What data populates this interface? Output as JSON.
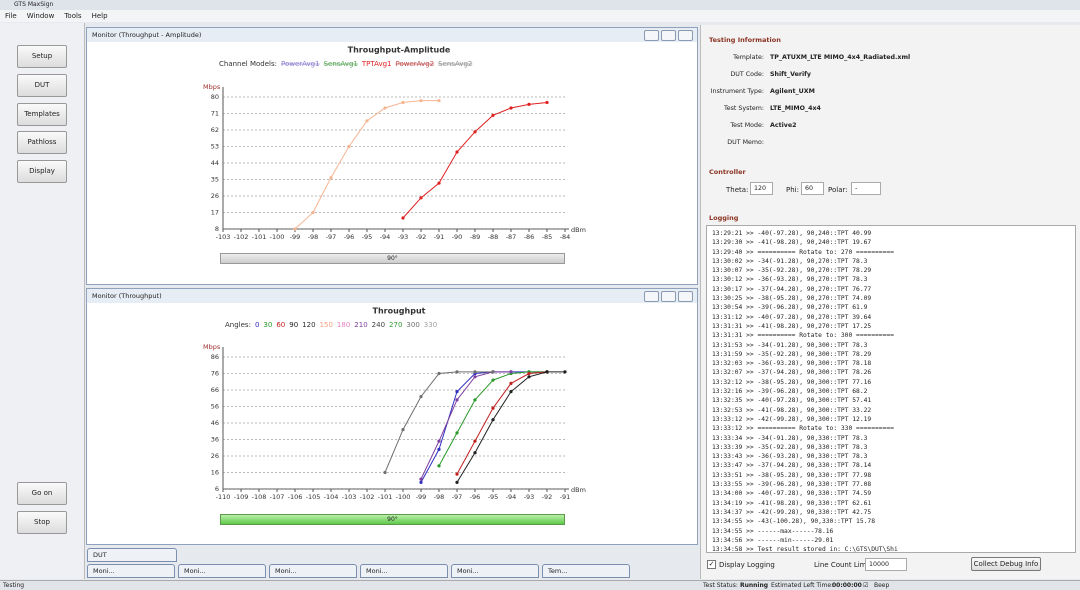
{
  "window_title": "GTS MaxSign",
  "menu": [
    "File",
    "Window",
    "Tools",
    "Help"
  ],
  "left_buttons": [
    "Setup",
    "DUT",
    "Templates",
    "Pathloss",
    "Display"
  ],
  "action_buttons": [
    "Go on",
    "Stop"
  ],
  "panels": [
    {
      "title": "Monitor (Throughput - Amplitude)",
      "slider": "90°"
    },
    {
      "title": "Monitor (Throughput)",
      "slider": "90°"
    }
  ],
  "chart_data": [
    {
      "type": "line",
      "title": "Throughput-Amplitude",
      "legend_title": "Channel Models:",
      "y_label": "Mbps",
      "x_label": "dBm",
      "ylim": [
        8,
        80
      ],
      "yticks": [
        8,
        17,
        26,
        35,
        44,
        53,
        62,
        71,
        80
      ],
      "xlim": [
        -103,
        -84
      ],
      "xticks": [
        -103,
        -102,
        -101,
        -100,
        -99,
        -98,
        -97,
        -96,
        -95,
        -94,
        -93,
        -92,
        -91,
        -90,
        -89,
        -88,
        -87,
        -86,
        -85,
        -84
      ],
      "grid": true,
      "series": [
        {
          "name": "PowerAvg1",
          "color": "#8a7fd0",
          "struck": true
        },
        {
          "name": "SensAvg1",
          "color": "#5aa55a",
          "struck": true
        },
        {
          "name": "TPTAvg1",
          "color": "#e02020",
          "x": [
            -93,
            -92,
            -91,
            -90,
            -89,
            -88,
            -87,
            -86,
            -85
          ],
          "values": [
            14,
            25,
            33,
            50,
            61,
            70,
            74,
            76,
            77
          ]
        },
        {
          "name": "PowerAvg2",
          "color": "#c05050",
          "struck": true
        },
        {
          "name": "SensAvg2",
          "color": "#909090",
          "struck": true
        },
        {
          "color": "#f5b592",
          "x": [
            -99,
            -98,
            -97,
            -96,
            -95,
            -94,
            -93,
            -92,
            -91
          ],
          "values": [
            8,
            17,
            36,
            53,
            67,
            74,
            77,
            78,
            78
          ]
        }
      ]
    },
    {
      "type": "line",
      "title": "Throughput",
      "legend_title": "Angles:",
      "y_label": "Mbps",
      "x_label": "dBm",
      "ylim": [
        6,
        86
      ],
      "yticks": [
        6,
        16,
        26,
        36,
        46,
        56,
        66,
        76,
        86
      ],
      "xlim": [
        -110,
        -91
      ],
      "xticks": [
        -110,
        -109,
        -108,
        -107,
        -106,
        -105,
        -104,
        -103,
        -102,
        -101,
        -100,
        -99,
        -98,
        -97,
        -96,
        -95,
        -94,
        -93,
        -92,
        -91
      ],
      "grid": true,
      "series": [
        {
          "name": "0",
          "color": "#3030c0",
          "x": [
            -99,
            -98,
            -97,
            -96,
            -95,
            -94,
            -93,
            -92
          ],
          "values": [
            10,
            30,
            65,
            76,
            77,
            77,
            77,
            77
          ]
        },
        {
          "name": "30",
          "color": "#2a9a2a",
          "x": [
            -98,
            -97,
            -96,
            -95,
            -94,
            -93,
            -92
          ],
          "values": [
            20,
            40,
            60,
            72,
            76,
            77,
            77
          ]
        },
        {
          "name": "60",
          "color": "#c02020",
          "x": [
            -97,
            -96,
            -95,
            -94,
            -93,
            -92
          ],
          "values": [
            15,
            35,
            55,
            70,
            76,
            77
          ]
        },
        {
          "name": "90",
          "color": "#202020",
          "x": [
            -97,
            -96,
            -95,
            -94,
            -93,
            -92,
            -91
          ],
          "values": [
            10,
            28,
            48,
            65,
            74,
            77,
            77
          ]
        },
        {
          "name": "120",
          "color": "#303030"
        },
        {
          "name": "150",
          "color": "#f0a080"
        },
        {
          "name": "180",
          "color": "#e080c0"
        },
        {
          "name": "210",
          "color": "#8040a0",
          "x": [
            -99,
            -98,
            -97,
            -96,
            -95,
            -94
          ],
          "values": [
            12,
            35,
            60,
            74,
            77,
            77
          ]
        },
        {
          "name": "240",
          "color": "#404040"
        },
        {
          "name": "270",
          "color": "#30a030"
        },
        {
          "name": "300",
          "color": "#707070",
          "x": [
            -101,
            -100,
            -99,
            -98,
            -97,
            -96,
            -95
          ],
          "values": [
            16,
            42,
            62,
            76,
            77,
            77,
            77
          ]
        },
        {
          "name": "330",
          "color": "#a0a0a0"
        }
      ]
    }
  ],
  "bottom_tabs": {
    "dut": "DUT",
    "tabs": [
      "Moni...",
      "Moni...",
      "Moni...",
      "Moni...",
      "Moni...",
      "Tem..."
    ]
  },
  "testing_information": {
    "title": "Testing Information",
    "fields": [
      {
        "label": "Template:",
        "value": "TP_ATUXM_LTE MIMO_4x4_Radiated.xml"
      },
      {
        "label": "DUT Code:",
        "value": "Shift_Verify"
      },
      {
        "label": "Instrument Type:",
        "value": "Agilent_UXM"
      },
      {
        "label": "Test System:",
        "value": "LTE_MIMO_4x4"
      },
      {
        "label": "Test Mode:",
        "value": "Active2"
      },
      {
        "label": "DUT Memo:"
      }
    ]
  },
  "controller": {
    "title": "Controller",
    "fields": [
      {
        "label": "Theta:",
        "value": "120"
      },
      {
        "label": "Phi:",
        "value": "60"
      },
      {
        "label": "Polar:",
        "value": "-"
      }
    ]
  },
  "logging": {
    "title": "Logging",
    "lines": [
      "13:29:21 >> -40(-97.28), 90,240::TPT 40.99",
      "13:29:30 >> -41(-98.28), 90,240::TPT 19.67",
      "13:29:40 >> ========== Rotate to: 270 ==========",
      "13:30:02 >> -34(-91.28), 90,270::TPT 78.3",
      "13:30:07 >> -35(-92.28), 90,270::TPT 78.29",
      "13:30:12 >> -36(-93.28), 90,270::TPT 78.3",
      "13:30:17 >> -37(-94.28), 90,270::TPT 76.77",
      "13:30:25 >> -38(-95.28), 90,270::TPT 74.09",
      "13:30:54 >> -39(-96.28), 90,270::TPT 61.9",
      "13:31:12 >> -40(-97.28), 90,270::TPT 39.64",
      "13:31:31 >> -41(-98.28), 90,270::TPT 17.25",
      "13:31:31 >> ========== Rotate to: 300 ==========",
      "13:31:53 >> -34(-91.28), 90,300::TPT 78.3",
      "13:31:59 >> -35(-92.28), 90,300::TPT 78.29",
      "13:32:03 >> -36(-93.28), 90,300::TPT 78.18",
      "13:32:07 >> -37(-94.28), 90,300::TPT 78.26",
      "13:32:12 >> -38(-95.28), 90,300::TPT 77.16",
      "13:32:16 >> -39(-96.28), 90,300::TPT 68.2",
      "13:32:35 >> -40(-97.28), 90,300::TPT 57.41",
      "13:32:53 >> -41(-98.28), 90,300::TPT 33.22",
      "13:33:12 >> -42(-99.28), 90,300::TPT 12.19",
      "13:33:12 >> ========== Rotate to: 330 ==========",
      "13:33:34 >> -34(-91.28), 90,330::TPT 78.3",
      "13:33:39 >> -35(-92.28), 90,330::TPT 78.3",
      "13:33:43 >> -36(-93.28), 90,330::TPT 78.3",
      "13:33:47 >> -37(-94.28), 90,330::TPT 78.14",
      "13:33:51 >> -38(-95.28), 90,330::TPT 77.98",
      "13:33:55 >> -39(-96.28), 90,330::TPT 77.08",
      "13:34:00 >> -40(-97.28), 90,330::TPT 74.59",
      "13:34:19 >> -41(-98.28), 90,330::TPT 62.61",
      "13:34:37 >> -42(-99.28), 90,330::TPT 42.75",
      "13:34:55 >> -43(-100.28), 90,330::TPT 15.78",
      "13:34:55 >> ------max------78.16",
      "13:34:56 >> ------min------29.01",
      "13:34:58 >> Test result stored in: C:\\GTS\\DUT\\Shi"
    ],
    "display_logging": "Display Logging",
    "line_count_label": "Line Count Limit:",
    "line_count": "10000",
    "collect_button": "Collect Debug Info"
  },
  "status_bar": {
    "left": "Testing",
    "test_status_label": "Test Status:",
    "test_status": "Running",
    "eta_label": "Estimated Left Time:",
    "eta": "00:00:00",
    "beep": "Beep"
  }
}
